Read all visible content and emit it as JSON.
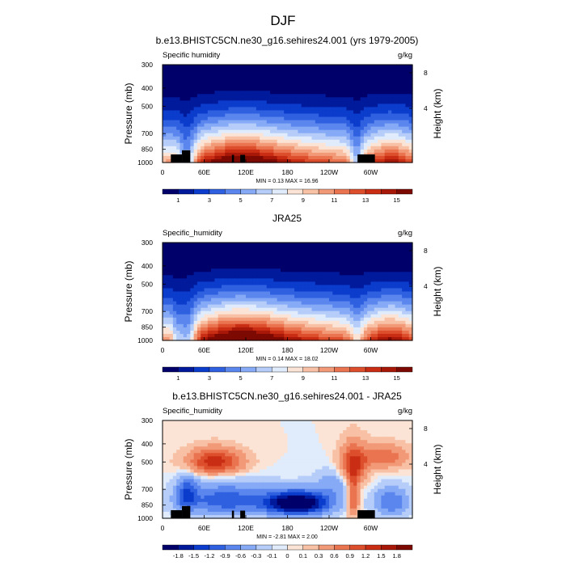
{
  "page_title": "DJF",
  "chart_data": [
    {
      "type": "heatmap",
      "title": "b.e13.BHISTC5CN.ne30_g16.sehires24.001 (yrs 1979-2005)",
      "left_label": "Specific humidity",
      "right_label": "g/kg",
      "xlabel": "",
      "ylabel": "Pressure (mb)",
      "y2label": "Height (km)",
      "x_ticks": [
        "0",
        "60E",
        "120E",
        "180",
        "120W",
        "60W"
      ],
      "x_tick_values": [
        0,
        60,
        120,
        180,
        240,
        300
      ],
      "xlim": [
        0,
        360
      ],
      "y_ticks": [
        "300",
        "400",
        "500",
        "700",
        "850",
        "1000"
      ],
      "y_tick_values": [
        300,
        400,
        500,
        700,
        850,
        1000
      ],
      "ylim": [
        1000,
        300
      ],
      "y_scale": "log",
      "y2_ticks": [
        "8",
        "4"
      ],
      "y2_tick_values": [
        8,
        4
      ],
      "stats": "MIN =   0.13  MAX =  16.96",
      "min": 0.13,
      "max": 16.96,
      "colorbar_labels": [
        "1",
        "3",
        "5",
        "7",
        "9",
        "11",
        "13",
        "15"
      ],
      "colorbar_levels": [
        0,
        1,
        2,
        3,
        4,
        5,
        6,
        7,
        8,
        9,
        10,
        11,
        12,
        13,
        14,
        15,
        16
      ],
      "field": "humidity",
      "terrain_mask": true
    },
    {
      "type": "heatmap",
      "title": "JRA25",
      "left_label": "Specific_humidity",
      "right_label": "g/kg",
      "xlabel": "",
      "ylabel": "Pressure (mb)",
      "y2label": "Height (km)",
      "x_ticks": [
        "0",
        "60E",
        "120E",
        "180",
        "120W",
        "60W"
      ],
      "x_tick_values": [
        0,
        60,
        120,
        180,
        240,
        300
      ],
      "xlim": [
        0,
        360
      ],
      "y_ticks": [
        "300",
        "400",
        "500",
        "700",
        "850",
        "1000"
      ],
      "y_tick_values": [
        300,
        400,
        500,
        700,
        850,
        1000
      ],
      "ylim": [
        1000,
        300
      ],
      "y_scale": "log",
      "y2_ticks": [
        "8",
        "4"
      ],
      "y2_tick_values": [
        8,
        4
      ],
      "stats": "MIN =   0.14  MAX =  18.02",
      "min": 0.14,
      "max": 18.02,
      "colorbar_labels": [
        "1",
        "3",
        "5",
        "7",
        "9",
        "11",
        "13",
        "15"
      ],
      "colorbar_levels": [
        0,
        1,
        2,
        3,
        4,
        5,
        6,
        7,
        8,
        9,
        10,
        11,
        12,
        13,
        14,
        15,
        16
      ],
      "field": "humidity_obs",
      "terrain_mask": false
    },
    {
      "type": "heatmap",
      "title": "b.e13.BHISTC5CN.ne30_g16.sehires24.001 - JRA25",
      "left_label": "Specific_humidity",
      "right_label": "g/kg",
      "xlabel": "",
      "ylabel": "Pressure (mb)",
      "y2label": "Height (km)",
      "x_ticks": [
        "0",
        "60E",
        "120E",
        "180",
        "120W",
        "60W"
      ],
      "x_tick_values": [
        0,
        60,
        120,
        180,
        240,
        300
      ],
      "xlim": [
        0,
        360
      ],
      "y_ticks": [
        "300",
        "400",
        "500",
        "700",
        "850",
        "1000"
      ],
      "y_tick_values": [
        300,
        400,
        500,
        700,
        850,
        1000
      ],
      "ylim": [
        1000,
        300
      ],
      "y_scale": "log",
      "y2_ticks": [
        "8",
        "4"
      ],
      "y2_tick_values": [
        8,
        4
      ],
      "stats": "MIN =  -2.81  MAX =   2.00",
      "min": -2.81,
      "max": 2.0,
      "colorbar_labels": [
        "-1.8",
        "-1.5",
        "-1.2",
        "-0.9",
        "-0.6",
        "-0.3",
        "-0.1",
        "0",
        "0.1",
        "0.3",
        "0.6",
        "0.9",
        "1.2",
        "1.5",
        "1.8"
      ],
      "colorbar_levels": [
        -2.1,
        -1.8,
        -1.5,
        -1.2,
        -0.9,
        -0.6,
        -0.3,
        -0.1,
        0,
        0.1,
        0.3,
        0.6,
        0.9,
        1.2,
        1.5,
        1.8,
        2.1
      ],
      "field": "difference",
      "terrain_mask": true
    }
  ],
  "colors": {
    "colormap": [
      "#00006b",
      "#001a9c",
      "#0b3ccc",
      "#2f60e0",
      "#5a86ee",
      "#86aaf5",
      "#b5cdf8",
      "#e0ebfb",
      "#fbe4d6",
      "#f8c0a4",
      "#f29a78",
      "#ea7450",
      "#dd4e2c",
      "#c92e14",
      "#a81808",
      "#7d0a02"
    ],
    "terrain": "#000000",
    "frame": "#000000"
  }
}
